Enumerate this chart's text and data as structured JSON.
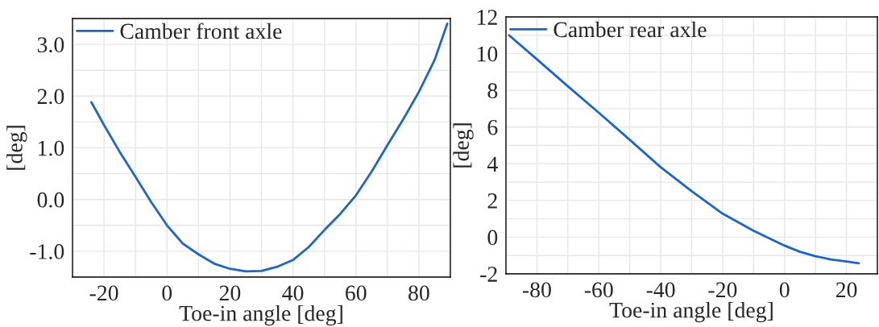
{
  "chart_data": [
    {
      "type": "line",
      "xlabel": "Toe-in angle [deg]",
      "ylabel": "[deg]",
      "legend": "top left",
      "grid": true,
      "x": [
        -24,
        -20,
        -15,
        -10,
        -5,
        0,
        5,
        10,
        15,
        20,
        25,
        30,
        35,
        40,
        45,
        50,
        55,
        60,
        65,
        70,
        75,
        80,
        85,
        89
      ],
      "series": [
        {
          "name": "Camber front axle",
          "color": "#1a66cc",
          "values": [
            1.88,
            1.44,
            0.92,
            0.44,
            -0.05,
            -0.5,
            -0.85,
            -1.06,
            -1.24,
            -1.34,
            -1.39,
            -1.38,
            -1.3,
            -1.17,
            -0.92,
            -0.59,
            -0.28,
            0.08,
            0.54,
            1.05,
            1.55,
            2.08,
            2.7,
            3.4
          ]
        }
      ],
      "xlim": [
        -30,
        90
      ],
      "xticks": [
        {
          "value": -30,
          "label": null
        },
        {
          "value": -20,
          "label": "-20"
        },
        {
          "value": -10,
          "label": null
        },
        {
          "value": 0,
          "label": "0"
        },
        {
          "value": 10,
          "label": null
        },
        {
          "value": 20,
          "label": "20"
        },
        {
          "value": 30,
          "label": null
        },
        {
          "value": 40,
          "label": "40"
        },
        {
          "value": 50,
          "label": null
        },
        {
          "value": 60,
          "label": "60"
        },
        {
          "value": 70,
          "label": null
        },
        {
          "value": 80,
          "label": "80"
        },
        {
          "value": 90,
          "label": null
        }
      ],
      "ylim": [
        -1.5,
        3.5
      ],
      "yticks": [
        {
          "value": -1.5,
          "label": null
        },
        {
          "value": -1.0,
          "label": "-1.0"
        },
        {
          "value": -0.5,
          "label": null
        },
        {
          "value": 0.0,
          "label": "0.0"
        },
        {
          "value": 0.5,
          "label": null
        },
        {
          "value": 1.0,
          "label": "1.0"
        },
        {
          "value": 1.5,
          "label": null
        },
        {
          "value": 2.0,
          "label": "2.0"
        },
        {
          "value": 2.5,
          "label": null
        },
        {
          "value": 3.0,
          "label": "3.0"
        },
        {
          "value": 3.5,
          "label": null
        }
      ]
    },
    {
      "type": "line",
      "xlabel": "Toe-in angle [deg]",
      "ylabel": "[deg]",
      "legend": "top left",
      "grid": true,
      "x": [
        -89,
        -80,
        -70,
        -60,
        -50,
        -40,
        -30,
        -20,
        -10,
        0,
        5,
        10,
        15,
        20,
        24
      ],
      "series": [
        {
          "name": "Camber rear axle",
          "color": "#1a66cc",
          "values": [
            11.0,
            9.69,
            8.22,
            6.78,
            5.3,
            3.81,
            2.5,
            1.28,
            0.35,
            -0.46,
            -0.8,
            -1.04,
            -1.22,
            -1.33,
            -1.42
          ]
        }
      ],
      "xlim": [
        -90,
        30
      ],
      "xticks": [
        {
          "value": -90,
          "label": null
        },
        {
          "value": -80,
          "label": "-80"
        },
        {
          "value": -70,
          "label": null
        },
        {
          "value": -60,
          "label": "-60"
        },
        {
          "value": -50,
          "label": null
        },
        {
          "value": -40,
          "label": "-40"
        },
        {
          "value": -30,
          "label": null
        },
        {
          "value": -20,
          "label": "-20"
        },
        {
          "value": -10,
          "label": null
        },
        {
          "value": 0,
          "label": "0"
        },
        {
          "value": 10,
          "label": null
        },
        {
          "value": 20,
          "label": "20"
        },
        {
          "value": 30,
          "label": null
        }
      ],
      "ylim": [
        -2,
        12
      ],
      "yticks": [
        {
          "value": -2,
          "label": "-2"
        },
        {
          "value": -1,
          "label": null
        },
        {
          "value": 0,
          "label": "0"
        },
        {
          "value": 1,
          "label": null
        },
        {
          "value": 2,
          "label": "2"
        },
        {
          "value": 3,
          "label": null
        },
        {
          "value": 4,
          "label": "4"
        },
        {
          "value": 5,
          "label": null
        },
        {
          "value": 6,
          "label": "6"
        },
        {
          "value": 7,
          "label": null
        },
        {
          "value": 8,
          "label": "8"
        },
        {
          "value": 9,
          "label": null
        },
        {
          "value": 10,
          "label": "10"
        },
        {
          "value": 11,
          "label": null
        },
        {
          "value": 12,
          "label": "12"
        }
      ]
    }
  ]
}
